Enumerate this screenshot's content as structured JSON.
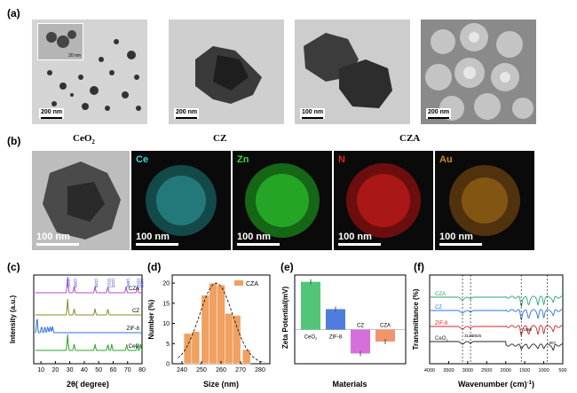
{
  "panels": {
    "a": {
      "letter": "(a)",
      "inset_scale": "20 nm",
      "scales": [
        "200 nm",
        "200 nm",
        "100 nm",
        "200 nm"
      ]
    },
    "samples": [
      "CeO",
      "CZ",
      "CZA"
    ],
    "b": {
      "letter": "(b)",
      "tem_scale": "100 nm",
      "maps": [
        {
          "label": "Ce",
          "scale": "100 nm",
          "color": "#3fd4d4"
        },
        {
          "label": "Zn",
          "scale": "100 nm",
          "color": "#33d933"
        },
        {
          "label": "N",
          "scale": "100 nm",
          "color": "#e62020"
        },
        {
          "label": "Au",
          "scale": "100 nm",
          "color": "#d08a1a"
        }
      ]
    },
    "c": {
      "letter": "(c)"
    },
    "d": {
      "letter": "(d)"
    },
    "e": {
      "letter": "(e)"
    },
    "f": {
      "letter": "(f)"
    }
  },
  "chart_data": [
    {
      "panel": "c",
      "type": "line",
      "xlabel": "2θ( degree)",
      "ylabel": "Intensity (a.u.)",
      "xticks": [
        10,
        20,
        30,
        40,
        50,
        60,
        70,
        80
      ],
      "xlim": [
        5,
        80
      ],
      "series": [
        {
          "name": "CZA",
          "color": "#b14bd1",
          "peaks": [
            28.5,
            33,
            47.5,
            56.3,
            69,
            76.7
          ]
        },
        {
          "name": "CZ",
          "color": "#8a8a2a",
          "peaks": [
            28.5,
            33,
            47.5,
            56.3
          ]
        },
        {
          "name": "ZIF-8",
          "color": "#2e6fe0",
          "peaks": [
            7.3,
            10.4,
            12.7,
            14.7,
            16.4,
            18
          ]
        },
        {
          "name": "CeO",
          "color": "#2aa52a",
          "peaks": [
            28.5,
            33,
            47.5,
            56.3,
            59,
            69.4,
            76.7,
            79
          ]
        }
      ],
      "annotations": [
        "(111)",
        "(200)",
        "(220)",
        "(311)",
        "(222)",
        "(400)",
        "(331)",
        "(420)"
      ]
    },
    {
      "panel": "d",
      "type": "bar",
      "legend": "CZA",
      "xlabel": "Size (nm)",
      "ylabel": "Number (%)",
      "xticks": [
        240,
        250,
        260,
        270,
        280
      ],
      "yticks": [
        0,
        5,
        10,
        15,
        20
      ],
      "xlim": [
        235,
        285
      ],
      "ylim": [
        0,
        22
      ],
      "categories": [
        243,
        247,
        252,
        256,
        260,
        264,
        268,
        273
      ],
      "values": [
        7.5,
        8,
        17,
        20,
        19.5,
        12.5,
        12,
        3.5
      ],
      "bar_color": "#f0a060"
    },
    {
      "panel": "e",
      "type": "bar",
      "xlabel": "Materials",
      "ylabel": "Zeta Potential(mV)",
      "categories": [
        "CeO",
        "ZIF-8",
        "CZ",
        "CZA"
      ],
      "values": [
        28,
        12,
        -14,
        -7
      ],
      "ylim": [
        -20,
        32
      ],
      "colors": [
        "#3fbf6a",
        "#3b6fd9",
        "#d25fd8",
        "#f08a5a"
      ]
    },
    {
      "panel": "f",
      "type": "line",
      "xlabel": "Wavenumber (cm)",
      "ylabel": "Transmittance (%)",
      "xticks": [
        4000,
        3500,
        3000,
        2500,
        2000,
        1500,
        1000,
        500
      ],
      "xlim": [
        4000,
        500
      ],
      "series": [
        {
          "name": "CZA",
          "color": "#2aa56a"
        },
        {
          "name": "CZ",
          "color": "#2e6fe0"
        },
        {
          "name": "ZIF-8",
          "color": "#d62020"
        },
        {
          "name": "CeO",
          "color": "#222222"
        }
      ],
      "annotations": [
        "3136",
        "2925",
        "1592",
        "907"
      ]
    }
  ]
}
